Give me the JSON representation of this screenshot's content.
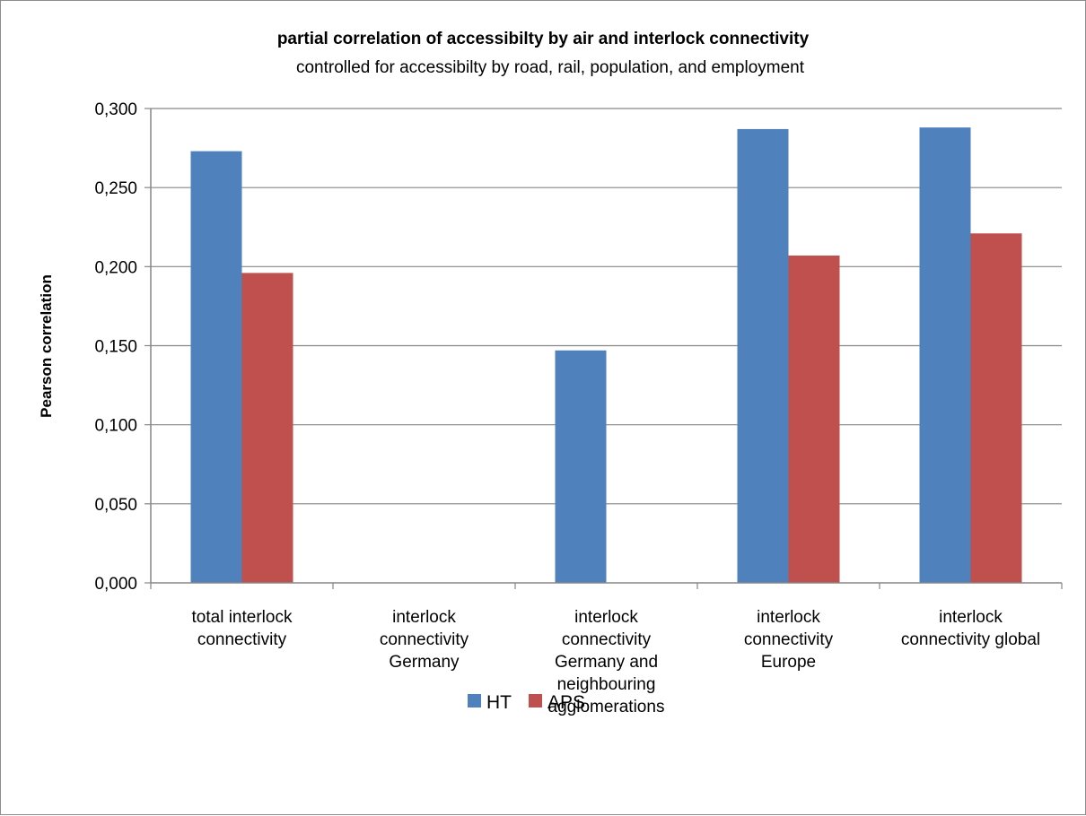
{
  "chart_data": {
    "type": "bar",
    "title": "partial correlation of accessibilty by air and interlock connectivity",
    "subtitle": "controlled for accessibilty by road, rail, population, and employment",
    "xlabel": "",
    "ylabel": "Pearson correlation",
    "ylim": [
      0,
      0.3
    ],
    "yticks": [
      "0,000",
      "0,050",
      "0,100",
      "0,150",
      "0,200",
      "0,250",
      "0,300"
    ],
    "grid": true,
    "legend_position": "bottom",
    "categories": [
      [
        "total interlock",
        "connectivity"
      ],
      [
        "interlock",
        "connectivity",
        "Germany"
      ],
      [
        "interlock",
        "connectivity",
        "Germany and",
        "neighbouring",
        "agglomerations"
      ],
      [
        "interlock",
        "connectivity",
        "Europe"
      ],
      [
        "interlock",
        "connectivity global"
      ]
    ],
    "series": [
      {
        "name": "HT",
        "color": "#4F81BD",
        "values": [
          0.273,
          null,
          0.147,
          0.287,
          0.288
        ]
      },
      {
        "name": "APS",
        "color": "#C0504D",
        "values": [
          0.196,
          null,
          null,
          0.207,
          0.221
        ]
      }
    ]
  }
}
